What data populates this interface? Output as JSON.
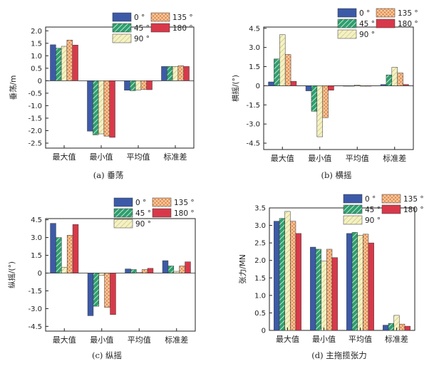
{
  "colors": {
    "0": "#3d5aa8",
    "45": "#2f9e6e",
    "90": "#e8e4a8",
    "135": "#e48a4a",
    "180": "#d8394a"
  },
  "chart_data": [
    {
      "type": "bar",
      "caption": "(a) 垂荡",
      "ylabel": "垂荡/m",
      "categories": [
        "最大值",
        "最小值",
        "平均值",
        "标准差"
      ],
      "ylim": [
        -2.7,
        2.15
      ],
      "yticks": [
        "2.0",
        "1.5",
        "1.0",
        "0.5",
        "0",
        "-0.5",
        "-1.0",
        "-1.5",
        "-2.0",
        "-2.5"
      ],
      "ytick_values": [
        2.0,
        1.5,
        1.0,
        0.5,
        0,
        -0.5,
        -1.0,
        -1.5,
        -2.0,
        -2.5
      ],
      "series": [
        {
          "name": "0 °",
          "key": "0",
          "values": [
            1.44,
            -2.02,
            -0.38,
            0.57
          ]
        },
        {
          "name": "45 °",
          "key": "45",
          "values": [
            1.3,
            -2.17,
            -0.4,
            0.57
          ]
        },
        {
          "name": "90 °",
          "key": "90",
          "values": [
            1.38,
            -2.13,
            -0.37,
            0.57
          ]
        },
        {
          "name": "135 °",
          "key": "135",
          "values": [
            1.63,
            -2.22,
            -0.35,
            0.6
          ]
        },
        {
          "name": "180 °",
          "key": "180",
          "values": [
            1.43,
            -2.27,
            -0.36,
            0.57
          ]
        }
      ]
    },
    {
      "type": "bar",
      "caption": "(b) 横摇",
      "ylabel": "横摇/(°)",
      "categories": [
        "最大值",
        "最小值",
        "平均值",
        "标准差"
      ],
      "ylim": [
        -5.0,
        4.6
      ],
      "yticks": [
        "4.5",
        "3.0",
        "1.5",
        "0",
        "-1.5",
        "-3.0",
        "-4.5"
      ],
      "ytick_values": [
        4.5,
        3.0,
        1.5,
        0,
        -1.5,
        -3.0,
        -4.5
      ],
      "series": [
        {
          "name": "0 °",
          "key": "0",
          "values": [
            0.3,
            -0.4,
            0.0,
            0.1
          ]
        },
        {
          "name": "45 °",
          "key": "45",
          "values": [
            2.1,
            -2.0,
            -0.03,
            0.85
          ]
        },
        {
          "name": "90 °",
          "key": "90",
          "values": [
            4.0,
            -4.0,
            0.06,
            1.45
          ]
        },
        {
          "name": "135 °",
          "key": "135",
          "values": [
            2.45,
            -2.5,
            0.0,
            1.0
          ]
        },
        {
          "name": "180 °",
          "key": "180",
          "values": [
            0.35,
            -0.35,
            0.0,
            0.1
          ]
        }
      ]
    },
    {
      "type": "bar",
      "caption": "(c) 纵摇",
      "ylabel": "纵摇/(°)",
      "categories": [
        "最大值",
        "最小值",
        "平均值",
        "标准差"
      ],
      "ylim": [
        -4.9,
        4.6
      ],
      "yticks": [
        "4.5",
        "3.0",
        "1.5",
        "0",
        "-1.5",
        "-3.0",
        "-4.5"
      ],
      "ytick_values": [
        4.5,
        3.0,
        1.5,
        0,
        -1.5,
        -3.0,
        -4.5
      ],
      "series": [
        {
          "name": "0 °",
          "key": "0",
          "values": [
            4.2,
            -3.6,
            0.35,
            1.05
          ]
        },
        {
          "name": "45 °",
          "key": "45",
          "values": [
            3.0,
            -2.8,
            0.3,
            0.6
          ]
        },
        {
          "name": "90 °",
          "key": "90",
          "values": [
            0.5,
            -0.2,
            0.05,
            0.15
          ]
        },
        {
          "name": "135 °",
          "key": "135",
          "values": [
            3.2,
            -2.9,
            0.3,
            0.6
          ]
        },
        {
          "name": "180 °",
          "key": "180",
          "values": [
            4.1,
            -3.5,
            0.4,
            0.95
          ]
        }
      ]
    },
    {
      "type": "bar",
      "caption": "(d) 主拖揽张力",
      "ylabel": "张力/MN",
      "categories": [
        "最大值",
        "最小值",
        "平均值",
        "标准差"
      ],
      "ylim": [
        0,
        3.5
      ],
      "yticks": [
        "0",
        "0.5",
        "1.0",
        "1.5",
        "2.0",
        "2.5",
        "3.0",
        "3.5"
      ],
      "ytick_values": [
        0,
        0.5,
        1.0,
        1.5,
        2.0,
        2.5,
        3.0,
        3.5
      ],
      "series": [
        {
          "name": "0 °",
          "key": "0",
          "values": [
            3.12,
            2.38,
            2.77,
            0.15
          ]
        },
        {
          "name": "45 °",
          "key": "45",
          "values": [
            3.2,
            2.32,
            2.8,
            0.2
          ]
        },
        {
          "name": "90 °",
          "key": "90",
          "values": [
            3.4,
            1.98,
            2.72,
            0.43
          ]
        },
        {
          "name": "135 °",
          "key": "135",
          "values": [
            3.12,
            2.32,
            2.75,
            0.18
          ]
        },
        {
          "name": "180 °",
          "key": "180",
          "values": [
            2.77,
            2.08,
            2.5,
            0.12
          ]
        }
      ]
    }
  ]
}
